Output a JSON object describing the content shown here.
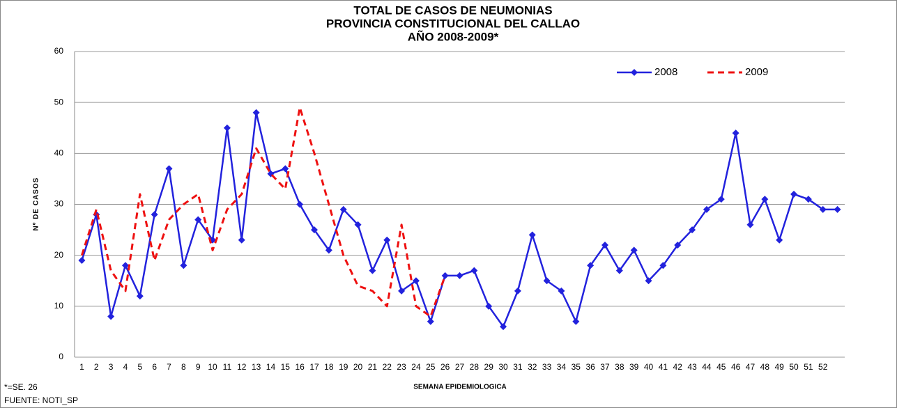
{
  "chart_data": {
    "type": "line",
    "title": [
      "TOTAL DE CASOS DE NEUMONIAS",
      "PROVINCIA CONSTITUCIONAL DEL CALLAO",
      "AÑO 2008-2009*"
    ],
    "x_label": "SEMANA EPIDEMIOLOGICA",
    "y_label": "Nº DE CASOS",
    "notes": [
      "*=SE. 26",
      "FUENTE: NOTI_SP"
    ],
    "categories": [
      "1",
      "2",
      "3",
      "4",
      "5",
      "6",
      "7",
      "8",
      "9",
      "10",
      "11",
      "12",
      "13",
      "14",
      "15",
      "16",
      "17",
      "18",
      "19",
      "20",
      "21",
      "22",
      "23",
      "24",
      "25",
      "26",
      "27",
      "28",
      "29",
      "30",
      "31",
      "32",
      "33",
      "34",
      "35",
      "36",
      "37",
      "38",
      "39",
      "40",
      "41",
      "42",
      "43",
      "44",
      "45",
      "46",
      "47",
      "48",
      "49",
      "50",
      "51",
      "52",
      null
    ],
    "series": [
      {
        "name": "2008",
        "color": "#2222dd",
        "marker": "diamond",
        "dashed": false,
        "values": [
          19,
          28,
          8,
          18,
          12,
          28,
          37,
          18,
          27,
          23,
          45,
          23,
          48,
          36,
          37,
          30,
          25,
          21,
          29,
          26,
          17,
          23,
          13,
          15,
          7,
          16,
          16,
          17,
          10,
          6,
          13,
          24,
          15,
          13,
          7,
          18,
          22,
          17,
          21,
          15,
          18,
          22,
          25,
          29,
          31,
          44,
          26,
          31,
          23,
          32,
          31,
          29,
          29
        ]
      },
      {
        "name": "2009",
        "color": "#ee1111",
        "marker": null,
        "dashed": true,
        "values": [
          20,
          29,
          17,
          13,
          32,
          19,
          27,
          30,
          32,
          21,
          29,
          32,
          41,
          36,
          33,
          49,
          40,
          30,
          20,
          14,
          13,
          10,
          26,
          10,
          8,
          16,
          null,
          null,
          null,
          null,
          null,
          null,
          null,
          null,
          null,
          null,
          null,
          null,
          null,
          null,
          null,
          null,
          null,
          null,
          null,
          null,
          null,
          null,
          null,
          null,
          null,
          null,
          null
        ]
      }
    ],
    "ylim": [
      0,
      60
    ],
    "yticks": [
      0,
      10,
      20,
      30,
      40,
      50,
      60
    ],
    "grid": true,
    "legend": "top-right"
  }
}
